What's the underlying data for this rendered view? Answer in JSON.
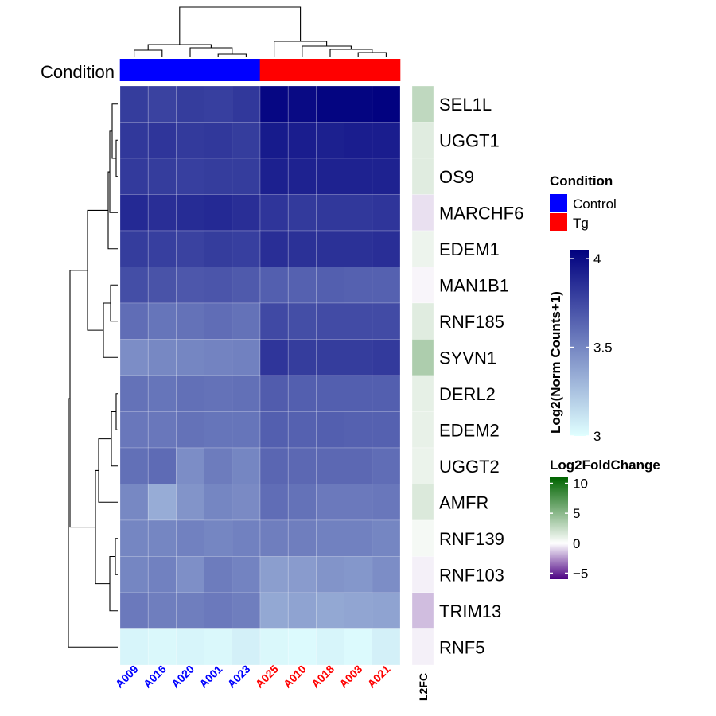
{
  "chart_data": {
    "type": "heatmap",
    "title": "",
    "condition_label": "Condition",
    "samples": [
      "A009",
      "A016",
      "A020",
      "A001",
      "A023",
      "A025",
      "A010",
      "A018",
      "A003",
      "A021"
    ],
    "sample_conditions": [
      "Control",
      "Control",
      "Control",
      "Control",
      "Control",
      "Tg",
      "Tg",
      "Tg",
      "Tg",
      "Tg"
    ],
    "genes": [
      "SEL1L",
      "UGGT1",
      "OS9",
      "MARCHF6",
      "EDEM1",
      "MAN1B1",
      "RNF185",
      "SYVN1",
      "DERL2",
      "EDEM2",
      "UGGT2",
      "AMFR",
      "RNF139",
      "RNF103",
      "TRIM13",
      "RNF5"
    ],
    "values": [
      [
        3.8,
        3.78,
        3.8,
        3.79,
        3.82,
        4.02,
        4.01,
        4.03,
        4.03,
        4.04
      ],
      [
        3.82,
        3.83,
        3.81,
        3.82,
        3.8,
        3.94,
        3.93,
        3.92,
        3.93,
        3.93
      ],
      [
        3.81,
        3.8,
        3.79,
        3.8,
        3.8,
        3.92,
        3.91,
        3.91,
        3.91,
        3.91
      ],
      [
        3.88,
        3.86,
        3.87,
        3.88,
        3.86,
        3.83,
        3.81,
        3.82,
        3.82,
        3.83
      ],
      [
        3.8,
        3.79,
        3.78,
        3.8,
        3.79,
        3.86,
        3.85,
        3.85,
        3.85,
        3.86
      ],
      [
        3.73,
        3.71,
        3.69,
        3.7,
        3.68,
        3.66,
        3.65,
        3.66,
        3.65,
        3.65
      ],
      [
        3.6,
        3.57,
        3.58,
        3.6,
        3.58,
        3.75,
        3.73,
        3.74,
        3.74,
        3.74
      ],
      [
        3.47,
        3.49,
        3.5,
        3.51,
        3.52,
        3.83,
        3.8,
        3.8,
        3.8,
        3.81
      ],
      [
        3.58,
        3.57,
        3.59,
        3.58,
        3.59,
        3.67,
        3.66,
        3.66,
        3.66,
        3.66
      ],
      [
        3.56,
        3.56,
        3.58,
        3.57,
        3.57,
        3.66,
        3.65,
        3.66,
        3.65,
        3.65
      ],
      [
        3.59,
        3.61,
        3.47,
        3.54,
        3.5,
        3.63,
        3.62,
        3.62,
        3.62,
        3.6
      ],
      [
        3.49,
        3.34,
        3.44,
        3.5,
        3.48,
        3.6,
        3.58,
        3.55,
        3.55,
        3.56
      ],
      [
        3.5,
        3.5,
        3.52,
        3.5,
        3.52,
        3.53,
        3.53,
        3.52,
        3.52,
        3.5
      ],
      [
        3.5,
        3.52,
        3.46,
        3.54,
        3.51,
        3.4,
        3.41,
        3.44,
        3.43,
        3.47
      ],
      [
        3.55,
        3.53,
        3.53,
        3.55,
        3.53,
        3.36,
        3.38,
        3.36,
        3.37,
        3.38
      ],
      [
        3.04,
        3.03,
        3.04,
        3.03,
        3.06,
        3.03,
        3.02,
        3.04,
        3.02,
        3.06
      ]
    ],
    "value_range": [
      3,
      4.05
    ],
    "l2fc_label": "L2FC",
    "l2fc": [
      2.5,
      1.2,
      1.2,
      -0.6,
      0.7,
      -0.2,
      1.2,
      3.2,
      1.0,
      0.9,
      0.8,
      1.4,
      0.4,
      -0.3,
      -1.3,
      -0.3
    ],
    "legends": {
      "condition": {
        "title": "Condition",
        "entries": [
          {
            "label": "Control",
            "color": "#0000ff"
          },
          {
            "label": "Tg",
            "color": "#ff0000"
          }
        ]
      },
      "expression": {
        "title": "Log2(Norm Counts+1)",
        "ticks": [
          "3",
          "3.5",
          "4"
        ],
        "tick_values": [
          3,
          3.5,
          4
        ],
        "range": [
          3,
          4.05
        ],
        "colors": [
          "#e0ffff",
          "#00007f"
        ]
      },
      "l2fc": {
        "title": "Log2FoldChange",
        "ticks": [
          "10",
          "5",
          "0",
          "−5"
        ],
        "tick_values": [
          10,
          5,
          0,
          -5
        ],
        "range": [
          -6,
          11
        ],
        "colors": {
          "low": "#4b0082",
          "mid": "#ffffff",
          "high": "#006400"
        }
      }
    },
    "colors": {
      "control": "#0000ff",
      "tg": "#ff0000",
      "heat_low": "#e0ffff",
      "heat_high": "#00007f",
      "l2fc_low": "#4b0082",
      "l2fc_mid": "#ffffff",
      "l2fc_high": "#006400"
    }
  }
}
